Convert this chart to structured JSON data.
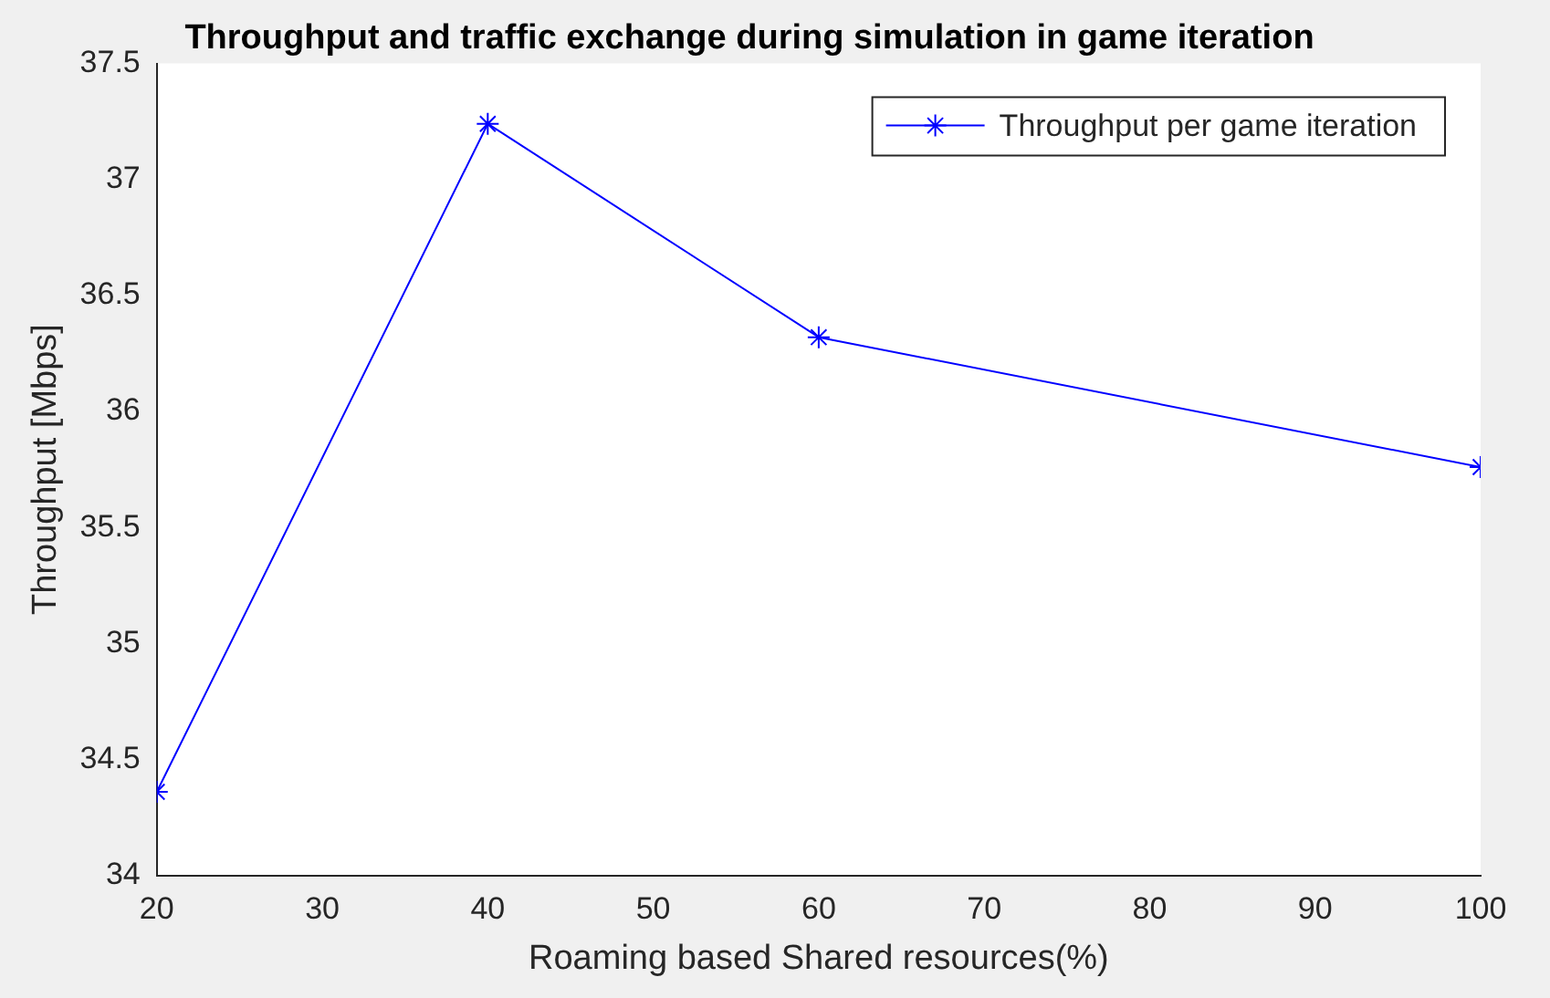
{
  "chart_data": {
    "type": "line",
    "title": "Throughput and traffic exchange during simulation in game iteration",
    "xlabel": "Roaming based Shared resources(%)",
    "ylabel": "Throughput [Mbps]",
    "x": [
      20,
      40,
      60,
      100
    ],
    "series": [
      {
        "name": "Throughput per game iteration",
        "color": "#0000ff",
        "values": [
          34.36,
          37.24,
          36.32,
          35.76
        ]
      }
    ],
    "xlim": [
      20,
      100
    ],
    "xticks": [
      20,
      30,
      40,
      50,
      60,
      70,
      80,
      90,
      100
    ],
    "ylim": [
      34,
      37.5
    ],
    "yticks": [
      34,
      34.5,
      35,
      35.5,
      36,
      36.5,
      37,
      37.5
    ],
    "grid": false,
    "legend": "top right",
    "marker": "cross",
    "line_style": "solid"
  }
}
